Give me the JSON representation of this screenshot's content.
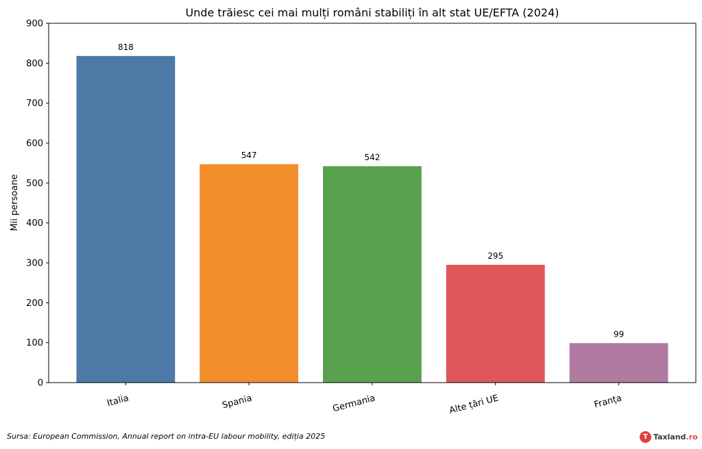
{
  "chart_data": {
    "type": "bar",
    "title": "Unde trăiesc cei mai mulți români stabiliți în alt stat UE/EFTA (2024)",
    "xlabel": "",
    "ylabel": "Mii persoane",
    "categories": [
      "Italia",
      "Spania",
      "Germania",
      "Alte țări UE",
      "Franța"
    ],
    "values": [
      818,
      547,
      542,
      295,
      99
    ],
    "data_labels": [
      "818",
      "547",
      "542",
      "295",
      "99"
    ],
    "colors": [
      "#4e79a7",
      "#f28e2b",
      "#59a14f",
      "#e15759",
      "#b07aa1"
    ],
    "ylim": [
      0,
      900
    ],
    "yticks": [
      0,
      100,
      200,
      300,
      400,
      500,
      600,
      700,
      800,
      900
    ],
    "grid": false,
    "legend": "none"
  },
  "footer": {
    "source": "Sursa: European Commission, Annual report on intra-EU labour mobility, ediția 2025",
    "brand_icon": "taxland-logo-icon",
    "brand_name": "Taxland",
    "brand_tld": ".ro"
  }
}
